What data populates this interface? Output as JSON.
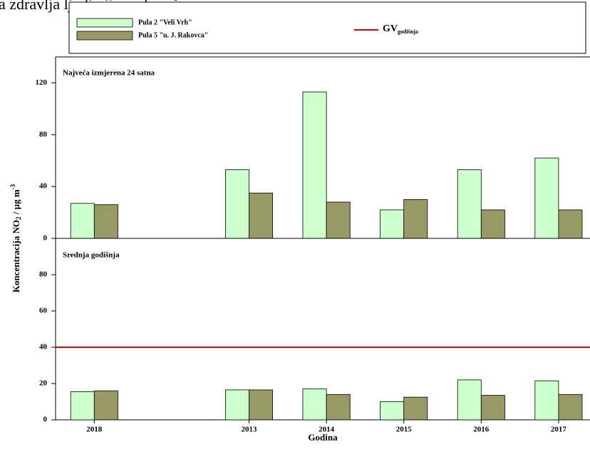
{
  "header_text": "a zdravlja ljudi nije prekoračen.",
  "chart_data": [
    {
      "type": "bar",
      "title": "Najveća izmjerena 24 satna",
      "ylabel_parts": [
        "Koncentracija NO",
        "2",
        " / µg m",
        "-3"
      ],
      "categories": [
        "2018",
        null,
        "2013",
        "2014",
        "2015",
        "2016",
        "2017"
      ],
      "series": [
        {
          "name": "Pula 2 \"Veli Vrh\"",
          "color": "#ccffcc",
          "values": [
            27,
            null,
            53,
            113,
            22,
            53,
            62
          ]
        },
        {
          "name": "Pula 5 \"u. J. Rakovca\"",
          "color": "#999966",
          "values": [
            26,
            null,
            35,
            28,
            30,
            22,
            22
          ]
        }
      ],
      "ylim": [
        0,
        140
      ],
      "yticks": [
        0,
        40,
        80,
        120
      ]
    },
    {
      "type": "bar",
      "title": "Srednja godišnja",
      "xlabel": "Godina",
      "categories": [
        "2018",
        null,
        "2013",
        "2014",
        "2015",
        "2016",
        "2017"
      ],
      "series": [
        {
          "name": "Pula 2 \"Veli Vrh\"",
          "color": "#ccffcc",
          "values": [
            15.5,
            null,
            16.5,
            17,
            10,
            22,
            21.5
          ]
        },
        {
          "name": "Pula 5 \"u. J. Rakovca\"",
          "color": "#999966",
          "values": [
            16,
            null,
            16.5,
            14,
            12.5,
            13.5,
            14
          ]
        }
      ],
      "reference_line": {
        "value": 40,
        "label": "GV",
        "label_sub": "godišnja",
        "color": "#e00000"
      },
      "ylim": [
        0,
        100
      ],
      "yticks": [
        0,
        20,
        40,
        60,
        80
      ]
    }
  ]
}
